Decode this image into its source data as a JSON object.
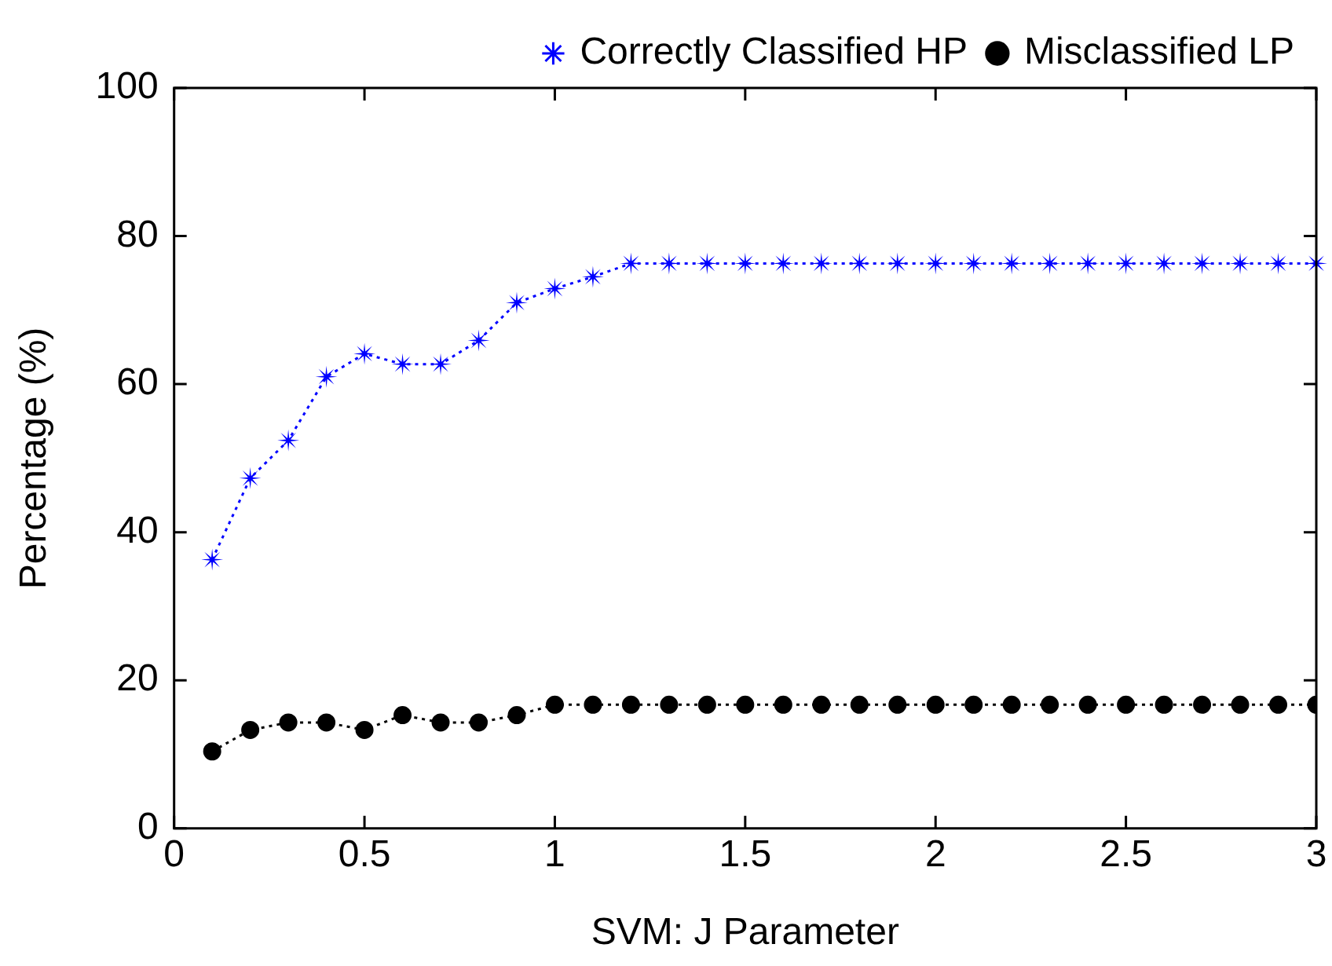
{
  "chart_data": {
    "type": "line",
    "xlabel": "SVM: J Parameter",
    "ylabel": "Percentage (%)",
    "x": [
      0.1,
      0.2,
      0.3,
      0.4,
      0.5,
      0.6,
      0.7,
      0.8,
      0.9,
      1.0,
      1.1,
      1.2,
      1.3,
      1.4,
      1.5,
      1.6,
      1.7,
      1.8,
      1.9,
      2.0,
      2.1,
      2.2,
      2.3,
      2.4,
      2.5,
      2.6,
      2.7,
      2.8,
      2.9,
      3.0
    ],
    "series": [
      {
        "name": "Correctly Classified HP",
        "color": "#0000ff",
        "marker": "star",
        "values": [
          36.3,
          47.3,
          52.4,
          61,
          64.1,
          62.7,
          62.7,
          65.9,
          71,
          72.9,
          74.5,
          76.3,
          76.3,
          76.3,
          76.3,
          76.3,
          76.3,
          76.3,
          76.3,
          76.3,
          76.3,
          76.3,
          76.3,
          76.3,
          76.3,
          76.3,
          76.3,
          76.3,
          76.3,
          76.3
        ]
      },
      {
        "name": "Misclassified LP",
        "color": "#000000",
        "marker": "circle",
        "values": [
          10.4,
          13.3,
          14.3,
          14.3,
          13.3,
          15.3,
          14.3,
          14.3,
          15.3,
          16.7,
          16.7,
          16.7,
          16.7,
          16.7,
          16.7,
          16.7,
          16.7,
          16.7,
          16.7,
          16.7,
          16.7,
          16.7,
          16.7,
          16.7,
          16.7,
          16.7,
          16.7,
          16.7,
          16.7,
          16.7
        ]
      }
    ],
    "line_style": "dotted",
    "grid": false,
    "legend": "top right",
    "xlim": [
      0,
      3
    ],
    "xticks": [
      0,
      0.5,
      1,
      1.5,
      2,
      2.5,
      3
    ],
    "ylim": [
      0,
      100
    ],
    "yticks": [
      0,
      20,
      40,
      60,
      80,
      100
    ]
  }
}
